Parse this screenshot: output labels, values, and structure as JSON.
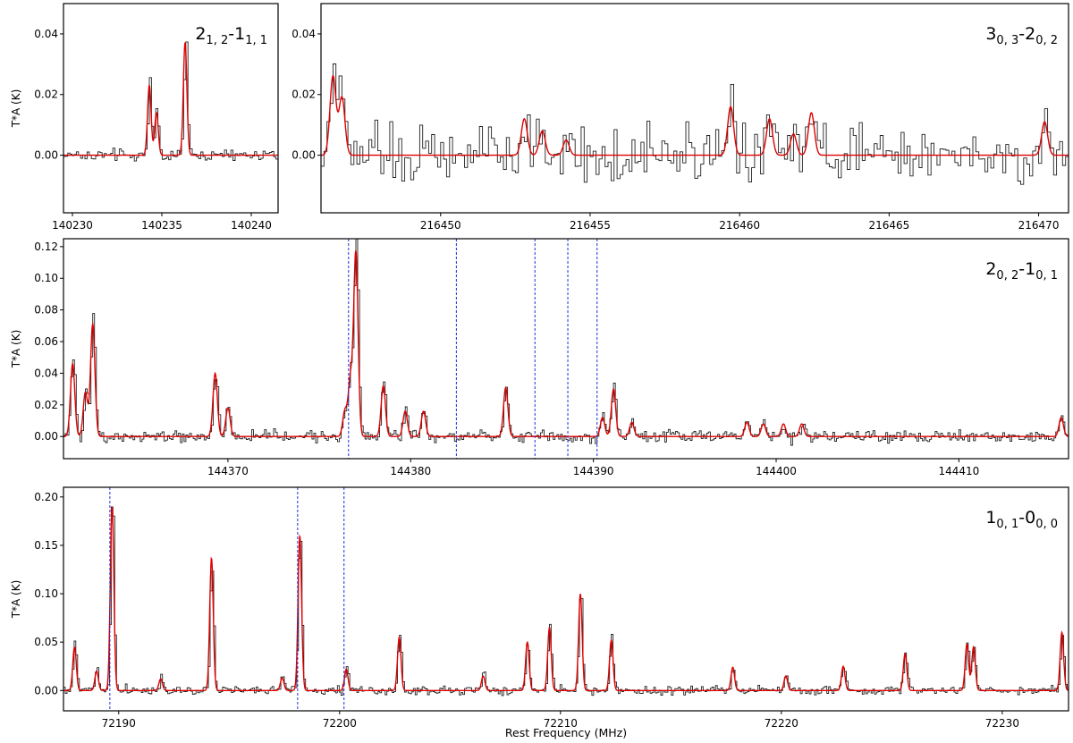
{
  "xlabel": "Rest Frequency (MHz)",
  "ylabel": "T*A (K)",
  "colors": {
    "observed": "#222222",
    "model": "#e00000",
    "marker": "#1f2fd6"
  },
  "chart_data": [
    {
      "type": "line",
      "transition": {
        "base": "2",
        "sub1": "1, 2",
        "mid": "-1",
        "sub2": "1, 1"
      },
      "xlim": [
        140229.5,
        140241.5
      ],
      "ylim": [
        -0.019,
        0.05
      ],
      "xticks": [
        140230,
        140235,
        140240
      ],
      "xtick_labels": [
        "140230",
        "140235",
        "140240"
      ],
      "yticks": [
        0.0,
        0.02,
        0.04
      ],
      "ytick_labels": [
        "0.00",
        "0.02",
        "0.04"
      ],
      "show_ylabel": true,
      "peaks": [
        [
          140234.3,
          0.023
        ],
        [
          140234.7,
          0.014
        ],
        [
          140236.3,
          0.037
        ]
      ],
      "noise": 0.0013,
      "width": 0.1,
      "step": 0.12,
      "markers": []
    },
    {
      "type": "line",
      "transition": {
        "base": "3",
        "sub1": "0, 3",
        "mid": "-2",
        "sub2": "0, 2"
      },
      "xlim": [
        216446.0,
        216471.0
      ],
      "ylim": [
        -0.019,
        0.05
      ],
      "xticks": [
        216450,
        216455,
        216460,
        216465,
        216470
      ],
      "xtick_labels": [
        "216450",
        "216455",
        "216460",
        "216465",
        "216470"
      ],
      "yticks": [
        0.0,
        0.02,
        0.04
      ],
      "ytick_labels": [
        "0.00",
        "0.02",
        "0.04"
      ],
      "show_ylabel": false,
      "peaks": [
        [
          216446.4,
          0.026
        ],
        [
          216446.7,
          0.019
        ],
        [
          216452.8,
          0.012
        ],
        [
          216453.4,
          0.008
        ],
        [
          216454.2,
          0.005
        ],
        [
          216459.7,
          0.016
        ],
        [
          216461.0,
          0.012
        ],
        [
          216461.8,
          0.007
        ],
        [
          216462.4,
          0.014
        ],
        [
          216470.2,
          0.011
        ]
      ],
      "noise": 0.0065,
      "width": 0.1,
      "step": 0.1,
      "markers": []
    },
    {
      "type": "line",
      "transition": {
        "base": "2",
        "sub1": "0, 2",
        "mid": "-1",
        "sub2": "0, 1"
      },
      "xlim": [
        144361.0,
        144416.0
      ],
      "ylim": [
        -0.014,
        0.125
      ],
      "xticks": [
        144370,
        144380,
        144390,
        144400,
        144410
      ],
      "xtick_labels": [
        "144370",
        "144380",
        "144390",
        "144400",
        "144410"
      ],
      "yticks": [
        0.0,
        0.02,
        0.04,
        0.06,
        0.08,
        0.1,
        0.12
      ],
      "ytick_labels": [
        "0.00",
        "0.02",
        "0.04",
        "0.06",
        "0.08",
        "0.10",
        "0.12"
      ],
      "show_ylabel": true,
      "peaks": [
        [
          144361.5,
          0.046
        ],
        [
          144362.2,
          0.028
        ],
        [
          144362.6,
          0.071
        ],
        [
          144369.3,
          0.04
        ],
        [
          144370.0,
          0.018
        ],
        [
          144376.4,
          0.016
        ],
        [
          144376.7,
          0.035
        ],
        [
          144377.0,
          0.116
        ],
        [
          144378.5,
          0.032
        ],
        [
          144379.7,
          0.016
        ],
        [
          144380.7,
          0.016
        ],
        [
          144385.2,
          0.031
        ],
        [
          144390.5,
          0.012
        ],
        [
          144391.1,
          0.03
        ],
        [
          144392.1,
          0.009
        ],
        [
          144398.4,
          0.009
        ],
        [
          144399.3,
          0.008
        ],
        [
          144400.4,
          0.008
        ],
        [
          144401.4,
          0.008
        ],
        [
          144415.6,
          0.012
        ]
      ],
      "noise": 0.0028,
      "width": 0.12,
      "step": 0.1,
      "markers": [
        144376.6,
        144382.5,
        144386.8,
        144388.6,
        144390.2
      ]
    },
    {
      "type": "line",
      "transition": {
        "base": "1",
        "sub1": "0, 1",
        "mid": "-0",
        "sub2": "0, 0"
      },
      "xlim": [
        72187.5,
        72233.0
      ],
      "ylim": [
        -0.021,
        0.21
      ],
      "xticks": [
        72190,
        72200,
        72210,
        72220,
        72230
      ],
      "xtick_labels": [
        "72190",
        "72200",
        "72210",
        "72220",
        "72230"
      ],
      "yticks": [
        0.0,
        0.05,
        0.1,
        0.15,
        0.2
      ],
      "ytick_labels": [
        "0.00",
        "0.05",
        "0.10",
        "0.15",
        "0.20"
      ],
      "show_ylabel": true,
      "peaks": [
        [
          72188.0,
          0.045
        ],
        [
          72189.0,
          0.02
        ],
        [
          72189.7,
          0.19
        ],
        [
          72191.9,
          0.012
        ],
        [
          72194.2,
          0.137
        ],
        [
          72197.4,
          0.013
        ],
        [
          72198.2,
          0.16
        ],
        [
          72200.3,
          0.022
        ],
        [
          72202.7,
          0.055
        ],
        [
          72206.5,
          0.015
        ],
        [
          72208.5,
          0.05
        ],
        [
          72209.5,
          0.065
        ],
        [
          72210.9,
          0.1
        ],
        [
          72212.3,
          0.052
        ],
        [
          72217.8,
          0.024
        ],
        [
          72220.2,
          0.015
        ],
        [
          72222.8,
          0.025
        ],
        [
          72225.6,
          0.038
        ],
        [
          72228.4,
          0.048
        ],
        [
          72228.7,
          0.045
        ],
        [
          72232.7,
          0.06
        ]
      ],
      "noise": 0.0032,
      "width": 0.08,
      "step": 0.08,
      "markers": [
        72189.6,
        72198.1,
        72200.2
      ]
    }
  ]
}
